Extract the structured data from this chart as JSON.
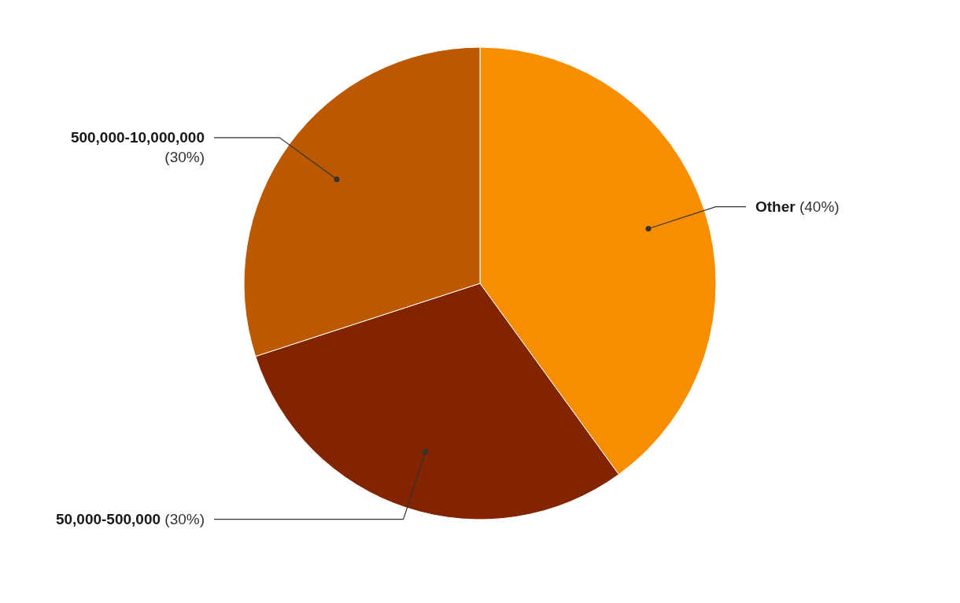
{
  "chart_data": {
    "type": "pie",
    "categories": [
      "Other",
      "50,000-500,000",
      "500,000-10,000,000"
    ],
    "values": [
      40,
      30,
      30
    ],
    "colors": [
      "#f78e00",
      "#832400",
      "#bc5800"
    ],
    "value_labels": [
      "(40%)",
      "(30%)",
      "(30%)"
    ]
  }
}
